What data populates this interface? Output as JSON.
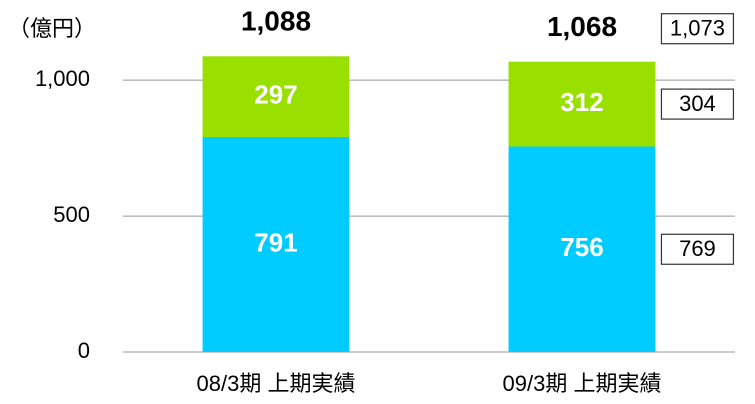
{
  "chart_data": {
    "type": "stacked_bar",
    "unit_label": "（億円）",
    "categories": [
      "08/3期 上期実績",
      "09/3期 上期実績"
    ],
    "series": [
      {
        "name": null,
        "color": "#00ccff",
        "values": [
          791,
          756
        ]
      },
      {
        "name": null,
        "color": "#99e000",
        "values": [
          297,
          312
        ]
      }
    ],
    "totals": {
      "values": [
        1088,
        1068
      ],
      "value_labels": [
        "1,088",
        "1,068"
      ]
    },
    "plan": {
      "values": [
        769,
        304
      ],
      "value_labels": [
        "769",
        "304"
      ],
      "total": 1073,
      "total_label": "1,073"
    },
    "ylim": [
      0,
      1100
    ],
    "yticks": [
      0,
      500,
      {
        "value": 1000,
        "label": "1,000"
      }
    ],
    "grid": true
  }
}
